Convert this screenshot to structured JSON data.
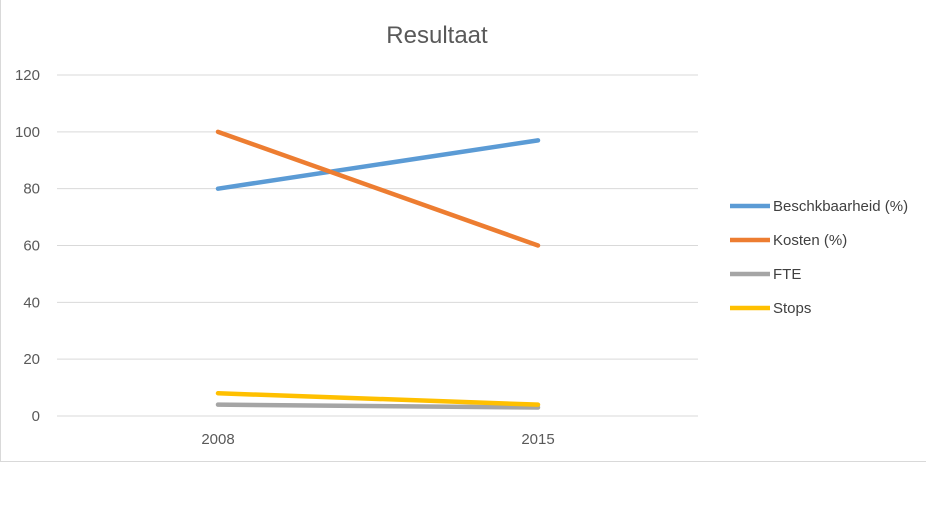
{
  "chart_data": {
    "type": "line",
    "title": "Resultaat",
    "x": [
      "2008",
      "2015"
    ],
    "ylim": [
      0,
      120
    ],
    "yticks": [
      0,
      20,
      40,
      60,
      80,
      100,
      120
    ],
    "grid": true,
    "legend_position": "right",
    "series": [
      {
        "name": "Beschkbaarheid (%)",
        "color": "#5b9bd5",
        "values": [
          80,
          97
        ]
      },
      {
        "name": "Kosten (%)",
        "color": "#ed7d31",
        "values": [
          100,
          60
        ]
      },
      {
        "name": "FTE",
        "color": "#a5a5a5",
        "values": [
          4,
          3
        ]
      },
      {
        "name": "Stops",
        "color": "#ffc000",
        "values": [
          8,
          4
        ]
      }
    ]
  }
}
